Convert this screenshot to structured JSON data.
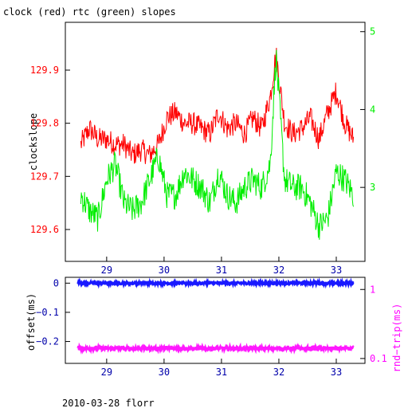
{
  "title": "clock (red) rtc (green) slopes",
  "footer": "2010-03-28 florr",
  "colors": {
    "clock": "#ff0000",
    "rtc": "#00ee00",
    "offset": "#0000ff",
    "rnd_trip": "#ff00ff",
    "axis": "#000000"
  },
  "chart_data": [
    {
      "type": "line",
      "title": "clock (red) rtc (green) slopes",
      "xlabel": "",
      "ylabel": "clockslope",
      "y2label": "",
      "xlim": [
        28.28,
        33.5
      ],
      "ylim": [
        129.54,
        129.99
      ],
      "y2lim": [
        2.05,
        5.12
      ],
      "x_ticks": [
        "29",
        "30",
        "31",
        "32",
        "33"
      ],
      "y_ticks": [
        "129.6",
        "129.7",
        "129.8",
        "129.9"
      ],
      "y2_ticks": [
        "3",
        "4",
        "5"
      ],
      "series": [
        {
          "name": "clock",
          "axis": "left",
          "x": [
            28.55,
            28.7,
            28.85,
            29.0,
            29.15,
            29.3,
            29.45,
            29.6,
            29.75,
            29.9,
            30.05,
            30.2,
            30.35,
            30.5,
            30.65,
            30.8,
            30.95,
            31.1,
            31.25,
            31.4,
            31.55,
            31.7,
            31.85,
            31.95,
            32.1,
            32.25,
            32.4,
            32.55,
            32.7,
            32.85,
            33.0,
            33.15,
            33.3
          ],
          "y": [
            129.76,
            129.79,
            129.77,
            129.77,
            129.76,
            129.76,
            129.74,
            129.75,
            129.74,
            129.76,
            129.81,
            129.82,
            129.8,
            129.8,
            129.79,
            129.78,
            129.82,
            129.79,
            129.8,
            129.78,
            129.81,
            129.79,
            129.85,
            129.93,
            129.8,
            129.78,
            129.79,
            129.81,
            129.77,
            129.82,
            129.86,
            129.8,
            129.77
          ]
        },
        {
          "name": "rtc",
          "axis": "right",
          "x": [
            28.55,
            28.7,
            28.85,
            29.0,
            29.15,
            29.3,
            29.45,
            29.6,
            29.75,
            29.9,
            30.05,
            30.2,
            30.35,
            30.5,
            30.65,
            30.8,
            30.95,
            31.1,
            31.25,
            31.4,
            31.55,
            31.7,
            31.85,
            31.95,
            32.1,
            32.25,
            32.4,
            32.55,
            32.7,
            32.85,
            33.0,
            33.15,
            33.3
          ],
          "y": [
            2.9,
            2.7,
            2.6,
            3.1,
            3.3,
            2.8,
            2.7,
            2.8,
            3.1,
            3.4,
            2.9,
            2.9,
            3.2,
            3.1,
            3.0,
            2.8,
            3.2,
            2.9,
            2.8,
            3.0,
            3.1,
            3.0,
            3.3,
            4.7,
            3.1,
            3.0,
            3.0,
            2.8,
            2.5,
            2.6,
            3.2,
            3.1,
            2.9
          ]
        }
      ]
    },
    {
      "type": "scatter",
      "xlabel": "",
      "ylabel": "offset(ms)",
      "y2label": "rnd−trip(ms)",
      "xlim": [
        28.28,
        33.5
      ],
      "ylim": [
        -0.275,
        0.02
      ],
      "y2scale": "log",
      "y2lim": [
        0.085,
        1.5
      ],
      "x_ticks": [
        "29",
        "30",
        "31",
        "32",
        "33"
      ],
      "y_ticks": [
        "0",
        "−0.1",
        "−0.2"
      ],
      "y2_ticks": [
        "1",
        "0.1"
      ],
      "series": [
        {
          "name": "offset",
          "axis": "left",
          "x_range": [
            28.5,
            33.3
          ],
          "y_typical": 0.0
        },
        {
          "name": "rnd-trip",
          "axis": "right",
          "x_range": [
            28.5,
            33.3
          ],
          "y_typical": 0.14
        }
      ]
    }
  ]
}
